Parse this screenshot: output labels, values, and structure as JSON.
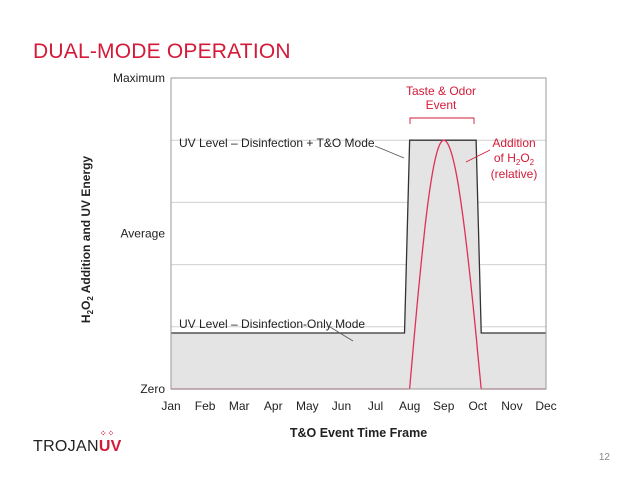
{
  "slide": {
    "title": "DUAL-MODE OPERATION",
    "page_number": "12",
    "logo_text": "TROJAN",
    "logo_accent": "UV"
  },
  "colors": {
    "title": "#d31a38",
    "uv_line": "#333333",
    "uv_fill": "#e4e4e4",
    "h2o2_curve": "#e0305a",
    "grid": "#d0d0d0"
  },
  "chart_data": {
    "type": "area",
    "xlabel": "T&O Event Time Frame",
    "ylabel": "H2O2 Addition and UV Energy",
    "categories": [
      "Jan",
      "Feb",
      "Mar",
      "Apr",
      "May",
      "Jun",
      "Jul",
      "Aug",
      "Sep",
      "Oct",
      "Nov",
      "Dec"
    ],
    "y_ticks": [
      {
        "label": "Zero",
        "value": 0
      },
      {
        "label": "Average",
        "value": 0.5
      },
      {
        "label": "Maximum",
        "value": 1
      }
    ],
    "grid_values": [
      0.2,
      0.4,
      0.6,
      0.8
    ],
    "ylim": [
      0,
      1
    ],
    "xlim": [
      0,
      11
    ],
    "series": [
      {
        "key": "uv",
        "label": "UV Level",
        "x": [
          0,
          6.85,
          7.0,
          8.95,
          9.1,
          11
        ],
        "y": [
          0.18,
          0.18,
          0.8,
          0.8,
          0.18,
          0.18
        ]
      },
      {
        "key": "h2o2",
        "label": "Addition of H2O2 (relative)",
        "x_start": 7.0,
        "x_end": 9.1,
        "x_peak": 8.0,
        "y_peak": 0.8,
        "y_base": 0.0
      }
    ],
    "annotations": {
      "uv_high": "UV Level – Disinfection + T&O Mode",
      "uv_low": "UV Level – Disinfection-Only Mode",
      "event_line1": "Taste & Odor",
      "event_line2": "Event",
      "h2o2_line1": "Addition",
      "h2o2_line2_prefix": "of H",
      "h2o2_line2_sub": "2",
      "h2o2_line2_mid": "O",
      "h2o2_line2_sub2": "2",
      "h2o2_line3": "(relative)"
    },
    "ylabel_parts": {
      "h": "H",
      "sub1": "2",
      "o": "O",
      "sub2": "2",
      "rest": " Addition and UV Energy"
    }
  }
}
